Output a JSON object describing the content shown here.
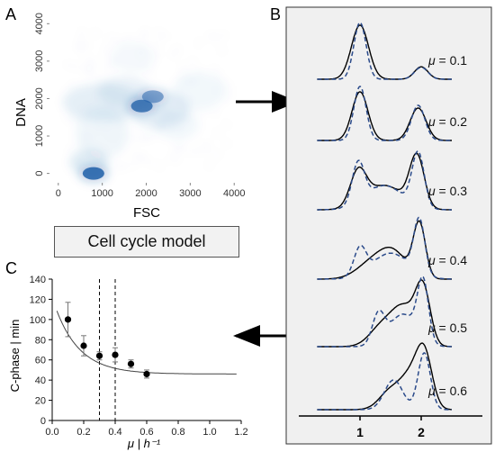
{
  "panel_labels": {
    "a": "A",
    "b": "B",
    "c": "C"
  },
  "model_box_label": "Cell cycle model",
  "colors": {
    "density": "#1f5fa8",
    "measured": "#000000",
    "model": "#2a4a8a",
    "panel_b_bg": "#f0f0f0",
    "arrow": "#000000"
  },
  "chart_data": [
    {
      "panel": "A",
      "type": "heatmap",
      "xlabel": "FSC",
      "ylabel": "DNA",
      "x_ticks": [
        "0",
        "1000",
        "2000",
        "3000",
        "4000"
      ],
      "y_ticks": [
        "0",
        "1000",
        "2000",
        "3000",
        "4000"
      ],
      "xlim": [
        -200,
        4200
      ],
      "ylim": [
        -250,
        4200
      ],
      "clusters": [
        {
          "x": 800,
          "y": 0,
          "weight": 1.0
        },
        {
          "x": 1900,
          "y": 1800,
          "weight": 0.9
        },
        {
          "x": 2150,
          "y": 2050,
          "weight": 0.6
        }
      ]
    },
    {
      "panel": "B",
      "type": "line",
      "x_ticks": [
        "1",
        "2"
      ],
      "xlim": [
        0,
        3
      ],
      "series_label_prefix": "μ",
      "panels": [
        {
          "mu_value": "= 0.1",
          "measured": [
            {
              "c": 1,
              "h": 1.0,
              "w": 0.14
            },
            {
              "c": 2,
              "h": 0.23,
              "w": 0.11
            }
          ],
          "model": [
            {
              "c": 1,
              "h": 1.05,
              "w": 0.1
            },
            {
              "c": 2,
              "h": 0.22,
              "w": 0.11
            }
          ]
        },
        {
          "mu_value": "= 0.2",
          "measured": [
            {
              "c": 1,
              "h": 0.9,
              "w": 0.13
            },
            {
              "c": 1.95,
              "h": 0.6,
              "w": 0.13
            }
          ],
          "model": [
            {
              "c": 1,
              "h": 1.0,
              "w": 0.1
            },
            {
              "c": 1.95,
              "h": 0.65,
              "w": 0.11
            }
          ]
        },
        {
          "mu_value": "= 0.3",
          "measured": [
            {
              "c": 0.97,
              "h": 0.62,
              "w": 0.13
            },
            {
              "c": 1.4,
              "h": 0.45,
              "w": 0.3
            },
            {
              "c": 1.93,
              "h": 0.95,
              "w": 0.12
            }
          ],
          "model": [
            {
              "c": 0.97,
              "h": 0.75,
              "w": 0.1
            },
            {
              "c": 1.4,
              "h": 0.45,
              "w": 0.3
            },
            {
              "c": 1.95,
              "h": 1.0,
              "w": 0.1
            }
          ]
        },
        {
          "mu_value": "= 0.4",
          "measured": [
            {
              "c": 1.2,
              "h": 0.3,
              "w": 0.25
            },
            {
              "c": 1.55,
              "h": 0.45,
              "w": 0.22
            },
            {
              "c": 1.97,
              "h": 1.0,
              "w": 0.1
            }
          ],
          "model": [
            {
              "c": 1.0,
              "h": 0.5,
              "w": 0.1
            },
            {
              "c": 1.5,
              "h": 0.48,
              "w": 0.3
            },
            {
              "c": 1.97,
              "h": 1.0,
              "w": 0.09
            }
          ]
        },
        {
          "mu_value": "= 0.5",
          "measured": [
            {
              "c": 1.35,
              "h": 0.35,
              "w": 0.2
            },
            {
              "c": 1.72,
              "h": 0.7,
              "w": 0.2
            },
            {
              "c": 2.03,
              "h": 1.0,
              "w": 0.12
            }
          ],
          "model": [
            {
              "c": 1.3,
              "h": 0.55,
              "w": 0.1
            },
            {
              "c": 1.7,
              "h": 0.6,
              "w": 0.22
            },
            {
              "c": 2.03,
              "h": 1.1,
              "w": 0.09
            }
          ]
        },
        {
          "mu_value": "= 0.6",
          "measured": [
            {
              "c": 1.5,
              "h": 0.35,
              "w": 0.18
            },
            {
              "c": 1.82,
              "h": 0.55,
              "w": 0.16
            },
            {
              "c": 2.05,
              "h": 1.0,
              "w": 0.13
            }
          ],
          "model": [
            {
              "c": 1.55,
              "h": 0.55,
              "w": 0.15
            },
            {
              "c": 2.05,
              "h": 1.05,
              "w": 0.1
            }
          ]
        }
      ]
    },
    {
      "panel": "C",
      "type": "scatter",
      "xlabel": "μ | h⁻¹",
      "ylabel": "C-phase | min",
      "x_ticks": [
        "0.0",
        "0.2",
        "0.4",
        "0.6",
        "0.8",
        "1.0",
        "1.2"
      ],
      "y_ticks": [
        "0",
        "20",
        "40",
        "60",
        "80",
        "100",
        "120",
        "140"
      ],
      "xlim": [
        0,
        1.2
      ],
      "ylim": [
        0,
        140
      ],
      "points": [
        {
          "x": 0.1,
          "y": 100,
          "err": 17
        },
        {
          "x": 0.2,
          "y": 74,
          "err": 10
        },
        {
          "x": 0.3,
          "y": 64,
          "err": 4
        },
        {
          "x": 0.4,
          "y": 65,
          "err": 7
        },
        {
          "x": 0.5,
          "y": 56,
          "err": 4
        },
        {
          "x": 0.6,
          "y": 46,
          "err": 4
        }
      ],
      "fit_curve": {
        "asymptote": 46,
        "amplitude": 76,
        "rate": 6.5
      },
      "vertical_dashed_lines": [
        0.3,
        0.4
      ]
    }
  ]
}
